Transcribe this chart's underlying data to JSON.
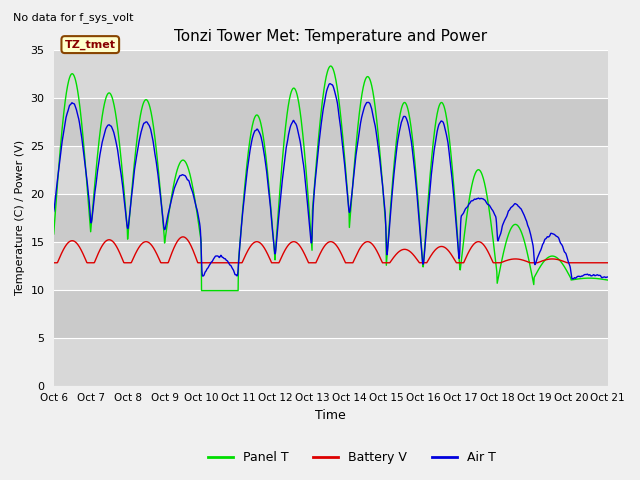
{
  "title": "Tonzi Tower Met: Temperature and Power",
  "no_data_text": "No data for f_sys_volt",
  "legend_label": "TZ_tmet",
  "xlabel": "Time",
  "ylabel": "Temperature (C) / Power (V)",
  "ylim": [
    0,
    35
  ],
  "yticks": [
    0,
    5,
    10,
    15,
    20,
    25,
    30,
    35
  ],
  "x_tick_labels": [
    "Oct 6",
    "Oct 7",
    "Oct 8",
    "Oct 9",
    "Oct 10",
    "Oct 11",
    "Oct 12",
    "Oct 13",
    "Oct 14",
    "Oct 15",
    "Oct 16",
    "Oct 17",
    "Oct 18",
    "Oct 19",
    "Oct 20",
    "Oct 21"
  ],
  "panel_t_color": "#00dd00",
  "battery_v_color": "#dd0000",
  "air_t_color": "#0000dd",
  "fig_bg_color": "#f0f0f0",
  "plot_bg_color": "#d8d8d8",
  "alt_band_color": "#c0c0c0",
  "grid_color": "#ffffff",
  "panel_t_label": "Panel T",
  "battery_v_label": "Battery V",
  "air_t_label": "Air T",
  "tztmet_fg": "#880000",
  "tztmet_bg": "#ffffcc",
  "tztmet_edge": "#884400"
}
